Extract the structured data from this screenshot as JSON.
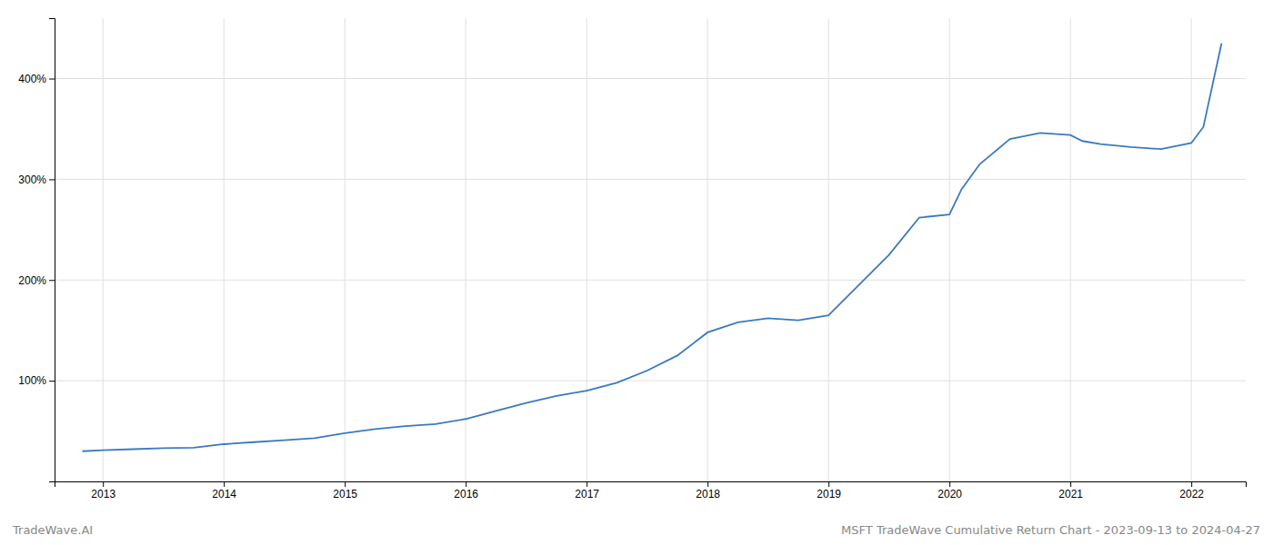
{
  "chart_data": {
    "type": "line",
    "title": "MSFT TradeWave Cumulative Return Chart - 2023-09-13 to 2024-04-27",
    "annotations": [
      "TradeWave.AI"
    ],
    "x": [
      2012.83,
      2013.0,
      2013.25,
      2013.5,
      2013.75,
      2014.0,
      2014.25,
      2014.5,
      2014.75,
      2015.0,
      2015.25,
      2015.5,
      2015.75,
      2016.0,
      2016.25,
      2016.5,
      2016.75,
      2017.0,
      2017.25,
      2017.5,
      2017.75,
      2018.0,
      2018.25,
      2018.5,
      2018.75,
      2019.0,
      2019.25,
      2019.5,
      2019.75,
      2020.0,
      2020.1,
      2020.25,
      2020.5,
      2020.75,
      2021.0,
      2021.1,
      2021.25,
      2021.5,
      2021.75,
      2022.0,
      2022.1,
      2022.25
    ],
    "values": [
      30,
      31,
      32,
      33,
      33.5,
      37,
      39,
      41,
      43,
      48,
      52,
      55,
      57,
      62,
      70,
      78,
      85,
      90,
      98,
      110,
      125,
      148,
      158,
      162,
      160,
      165,
      195,
      225,
      262,
      265,
      290,
      315,
      340,
      346,
      344,
      338,
      335,
      332,
      330,
      336,
      352,
      435
    ],
    "color": "#3a7abf",
    "xlim": [
      2012.6,
      2022.45
    ],
    "xticks": [
      2013,
      2014,
      2015,
      2016,
      2017,
      2018,
      2019,
      2020,
      2021,
      2022
    ],
    "ylim": [
      0,
      460
    ],
    "yticks": [
      {
        "value": 100,
        "label": "100%"
      },
      {
        "value": 200,
        "label": "200%"
      },
      {
        "value": 300,
        "label": "300%"
      },
      {
        "value": 400,
        "label": "400%"
      }
    ],
    "grid": true
  }
}
